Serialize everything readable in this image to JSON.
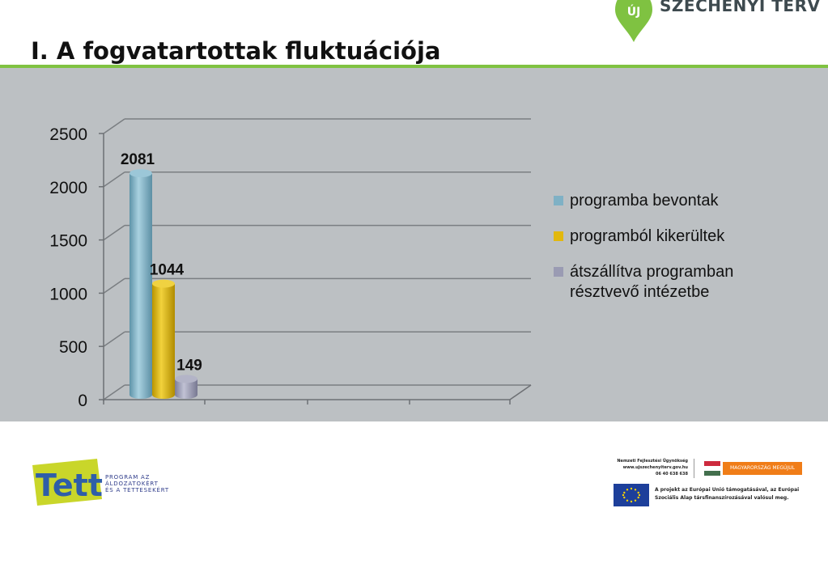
{
  "header": {
    "title": "I. A fogvatartottak fluktuációja",
    "brand_text": "SZÉCHENYI TERV",
    "brand_badge": "ÚJ"
  },
  "colors": {
    "accent_green": "#7fc241",
    "panel_gray": "#bcc0c3",
    "series1": "#7fb1c5",
    "series2": "#e2b80e",
    "series3": "#9a9bb3",
    "orange": "#f07d18",
    "eu_blue": "#1d3f9a"
  },
  "chart_data": {
    "type": "bar",
    "categories": [
      ""
    ],
    "series": [
      {
        "name": "programba bevontak",
        "values": [
          2081
        ]
      },
      {
        "name": "programból kikerültek",
        "values": [
          1044
        ]
      },
      {
        "name": "átszállítva programban résztvevő intézetbe",
        "values": [
          149
        ]
      }
    ],
    "data_labels": [
      "2081",
      "1044",
      "149"
    ],
    "yticks": [
      "0",
      "500",
      "1000",
      "1500",
      "2000",
      "2500"
    ],
    "ylim": [
      0,
      2500
    ],
    "grid": true,
    "legend_position": "right",
    "title": "",
    "xlabel": "",
    "ylabel": ""
  },
  "legend": {
    "item1": "programba bevontak",
    "item2": "programból kikerültek",
    "item3_line1": "átszállítva programban",
    "item3_line2": "résztvevő intézetbe"
  },
  "footer": {
    "tett_logo_text": "Tett",
    "tett_line1": "PROGRAM AZ",
    "tett_line2": "ÁLDOZATOKÉRT",
    "tett_line3": "ÉS A TETTESEKÉRT",
    "nfu_line1": "Nemzeti Fejlesztési Ügynökség",
    "nfu_line2": "www.ujszechenyiterv.gov.hu",
    "nfu_line3": "06 40 638 638",
    "mm_badge": "MAGYARORSZÁG MEGÚJUL",
    "eu_line1": "A projekt az Európai Unió támogatásával, az Európai",
    "eu_line2": "Szociális Alap társfinanszírozásával valósul meg."
  }
}
